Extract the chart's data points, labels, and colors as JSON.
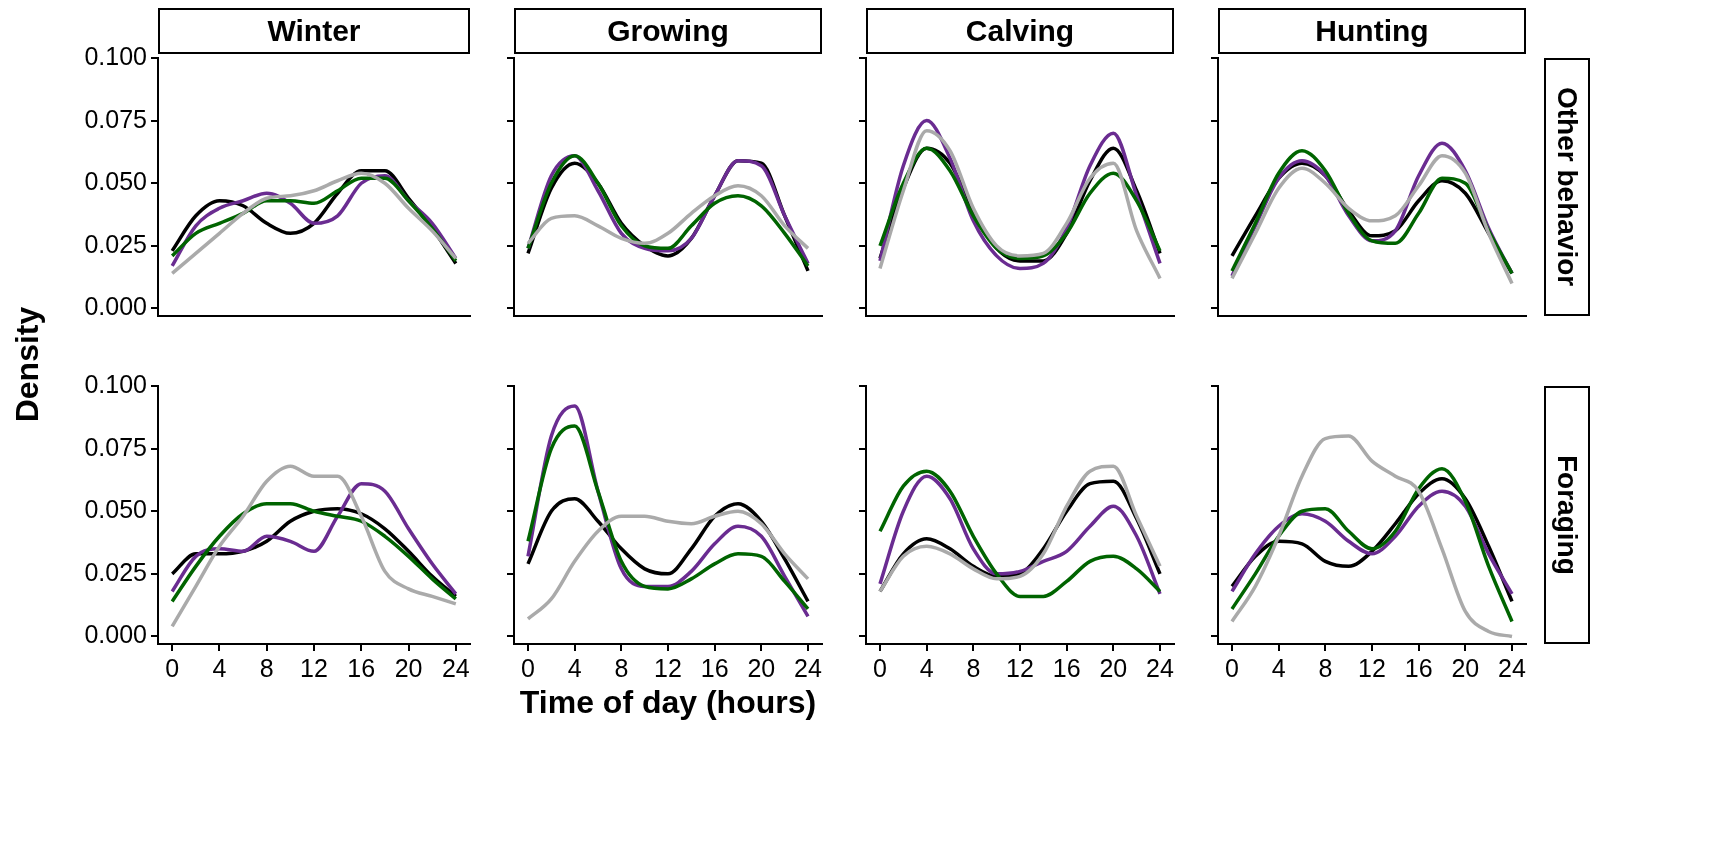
{
  "chart_data": [
    {
      "type": "line",
      "title": "Winter",
      "ylabel": "Density",
      "tick_labels": "y",
      "x": [
        0,
        2,
        4,
        6,
        8,
        10,
        12,
        14,
        16,
        18,
        20,
        22,
        24
      ],
      "xlim": [
        -1.2,
        25.2
      ],
      "xticks": [
        0,
        4,
        8,
        12,
        16,
        20,
        24
      ],
      "ylim": [
        -0.003,
        0.1
      ],
      "yticks": [
        {
          "value": 0,
          "label": "0.000"
        },
        {
          "value": 0.025,
          "label": "0.025"
        },
        {
          "value": 0.05,
          "label": "0.050"
        },
        {
          "value": 0.075,
          "label": "0.075"
        },
        {
          "value": 0.1,
          "label": "0.100"
        }
      ],
      "grid": false,
      "legend": false,
      "marker": "none",
      "line_style": "solid",
      "series": [
        {
          "color": "#aaaaaa",
          "values": [
            0.014,
            0.022,
            0.03,
            0.038,
            0.044,
            0.045,
            0.047,
            0.051,
            0.054,
            0.05,
            0.04,
            0.031,
            0.02
          ]
        },
        {
          "color": "#006400",
          "values": [
            0.021,
            0.03,
            0.034,
            0.038,
            0.043,
            0.043,
            0.042,
            0.047,
            0.052,
            0.052,
            0.043,
            0.032,
            0.019
          ]
        },
        {
          "color": "#6a2c91",
          "values": [
            0.017,
            0.033,
            0.04,
            0.043,
            0.046,
            0.042,
            0.034,
            0.037,
            0.05,
            0.053,
            0.043,
            0.034,
            0.02
          ]
        },
        {
          "color": "#000000",
          "values": [
            0.023,
            0.037,
            0.043,
            0.041,
            0.034,
            0.03,
            0.034,
            0.046,
            0.055,
            0.055,
            0.044,
            0.032,
            0.018
          ]
        }
      ]
    },
    {
      "type": "line",
      "title": "Growing",
      "tick_labels": false,
      "x": [
        0,
        2,
        4,
        6,
        8,
        10,
        12,
        14,
        16,
        18,
        20,
        22,
        24
      ],
      "xlim": [
        -1.2,
        25.2
      ],
      "xticks": [
        0,
        4,
        8,
        12,
        16,
        20,
        24
      ],
      "ylim": [
        -0.003,
        0.1
      ],
      "yticks": [
        0,
        0.025,
        0.05,
        0.075,
        0.1
      ],
      "grid": false,
      "legend": false,
      "marker": "none",
      "line_style": "solid",
      "series": [
        {
          "color": "#aaaaaa",
          "values": [
            0.026,
            0.036,
            0.037,
            0.033,
            0.028,
            0.026,
            0.03,
            0.038,
            0.045,
            0.049,
            0.045,
            0.033,
            0.024
          ]
        },
        {
          "color": "#006400",
          "values": [
            0.024,
            0.05,
            0.061,
            0.05,
            0.033,
            0.025,
            0.024,
            0.033,
            0.042,
            0.045,
            0.041,
            0.03,
            0.017
          ]
        },
        {
          "color": "#6a2c91",
          "values": [
            0.024,
            0.053,
            0.061,
            0.047,
            0.03,
            0.024,
            0.023,
            0.028,
            0.045,
            0.059,
            0.057,
            0.037,
            0.018
          ]
        },
        {
          "color": "#000000",
          "values": [
            0.022,
            0.048,
            0.058,
            0.05,
            0.034,
            0.025,
            0.021,
            0.028,
            0.045,
            0.059,
            0.058,
            0.037,
            0.015
          ]
        }
      ]
    },
    {
      "type": "line",
      "title": "Calving",
      "tick_labels": false,
      "x": [
        0,
        2,
        4,
        6,
        8,
        10,
        12,
        14,
        16,
        18,
        20,
        22,
        24
      ],
      "xlim": [
        -1.2,
        25.2
      ],
      "xticks": [
        0,
        4,
        8,
        12,
        16,
        20,
        24
      ],
      "ylim": [
        -0.003,
        0.1
      ],
      "yticks": [
        0,
        0.025,
        0.05,
        0.075,
        0.1
      ],
      "grid": false,
      "legend": false,
      "marker": "none",
      "line_style": "solid",
      "series": [
        {
          "color": "#aaaaaa",
          "values": [
            0.016,
            0.047,
            0.071,
            0.063,
            0.04,
            0.025,
            0.021,
            0.022,
            0.034,
            0.052,
            0.058,
            0.031,
            0.012
          ]
        },
        {
          "color": "#006400",
          "values": [
            0.025,
            0.05,
            0.064,
            0.055,
            0.037,
            0.024,
            0.02,
            0.021,
            0.03,
            0.046,
            0.054,
            0.043,
            0.023
          ]
        },
        {
          "color": "#6a2c91",
          "values": [
            0.019,
            0.057,
            0.075,
            0.06,
            0.035,
            0.021,
            0.016,
            0.018,
            0.032,
            0.057,
            0.07,
            0.045,
            0.018
          ]
        },
        {
          "color": "#000000",
          "values": [
            0.02,
            0.048,
            0.064,
            0.058,
            0.039,
            0.024,
            0.019,
            0.019,
            0.03,
            0.051,
            0.064,
            0.047,
            0.022
          ]
        }
      ]
    },
    {
      "type": "line",
      "title": "Hunting",
      "annotations": [
        "Other behavior"
      ],
      "tick_labels": false,
      "x": [
        0,
        2,
        4,
        6,
        8,
        10,
        12,
        14,
        16,
        18,
        20,
        22,
        24
      ],
      "xlim": [
        -1.2,
        25.2
      ],
      "xticks": [
        0,
        4,
        8,
        12,
        16,
        20,
        24
      ],
      "ylim": [
        -0.003,
        0.1
      ],
      "yticks": [
        0,
        0.025,
        0.05,
        0.075,
        0.1
      ],
      "grid": false,
      "legend": false,
      "marker": "none",
      "line_style": "solid",
      "series": [
        {
          "color": "#aaaaaa",
          "values": [
            0.012,
            0.03,
            0.048,
            0.056,
            0.05,
            0.04,
            0.035,
            0.037,
            0.049,
            0.061,
            0.054,
            0.03,
            0.01
          ]
        },
        {
          "color": "#006400",
          "values": [
            0.015,
            0.034,
            0.054,
            0.063,
            0.055,
            0.038,
            0.027,
            0.026,
            0.038,
            0.052,
            0.05,
            0.031,
            0.014
          ]
        },
        {
          "color": "#6a2c91",
          "values": [
            0.013,
            0.033,
            0.052,
            0.059,
            0.053,
            0.037,
            0.027,
            0.031,
            0.053,
            0.066,
            0.055,
            0.032,
            0.014
          ]
        },
        {
          "color": "#000000",
          "values": [
            0.021,
            0.037,
            0.052,
            0.058,
            0.053,
            0.039,
            0.029,
            0.031,
            0.043,
            0.051,
            0.046,
            0.03,
            0.014
          ]
        }
      ]
    },
    {
      "type": "line",
      "x": [
        0,
        2,
        4,
        6,
        8,
        10,
        12,
        14,
        16,
        18,
        20,
        22,
        24
      ],
      "xlim": [
        -1.2,
        25.2
      ],
      "xticks": [
        0,
        4,
        8,
        12,
        16,
        20,
        24
      ],
      "ylim": [
        -0.003,
        0.1
      ],
      "yticks": [
        {
          "value": 0,
          "label": "0.000"
        },
        {
          "value": 0.025,
          "label": "0.025"
        },
        {
          "value": 0.05,
          "label": "0.050"
        },
        {
          "value": 0.075,
          "label": "0.075"
        },
        {
          "value": 0.1,
          "label": "0.100"
        }
      ],
      "grid": false,
      "legend": false,
      "marker": "none",
      "line_style": "solid",
      "series": [
        {
          "color": "#aaaaaa",
          "values": [
            0.004,
            0.02,
            0.036,
            0.048,
            0.062,
            0.068,
            0.064,
            0.064,
            0.048,
            0.026,
            0.019,
            0.016,
            0.013
          ]
        },
        {
          "color": "#006400",
          "values": [
            0.014,
            0.028,
            0.04,
            0.049,
            0.053,
            0.053,
            0.05,
            0.048,
            0.046,
            0.04,
            0.032,
            0.023,
            0.015
          ]
        },
        {
          "color": "#6a2c91",
          "values": [
            0.018,
            0.032,
            0.035,
            0.034,
            0.04,
            0.038,
            0.034,
            0.048,
            0.061,
            0.058,
            0.043,
            0.029,
            0.017
          ]
        },
        {
          "color": "#000000",
          "values": [
            0.025,
            0.033,
            0.033,
            0.034,
            0.038,
            0.046,
            0.05,
            0.051,
            0.049,
            0.043,
            0.034,
            0.024,
            0.016
          ]
        }
      ]
    },
    {
      "type": "line",
      "xlabel": "Time of day (hours)",
      "tick_labels": "x",
      "x": [
        0,
        2,
        4,
        6,
        8,
        10,
        12,
        14,
        16,
        18,
        20,
        22,
        24
      ],
      "xlim": [
        -1.2,
        25.2
      ],
      "xticks": [
        0,
        4,
        8,
        12,
        16,
        20,
        24
      ],
      "ylim": [
        -0.003,
        0.1
      ],
      "yticks": [
        0,
        0.025,
        0.05,
        0.075,
        0.1
      ],
      "grid": false,
      "legend": false,
      "marker": "none",
      "line_style": "solid",
      "series": [
        {
          "color": "#aaaaaa",
          "values": [
            0.007,
            0.015,
            0.03,
            0.042,
            0.048,
            0.048,
            0.046,
            0.045,
            0.048,
            0.05,
            0.045,
            0.033,
            0.023
          ]
        },
        {
          "color": "#006400",
          "values": [
            0.038,
            0.075,
            0.084,
            0.058,
            0.03,
            0.02,
            0.019,
            0.023,
            0.029,
            0.033,
            0.032,
            0.022,
            0.011
          ]
        },
        {
          "color": "#6a2c91",
          "values": [
            0.032,
            0.08,
            0.092,
            0.058,
            0.027,
            0.02,
            0.02,
            0.026,
            0.037,
            0.044,
            0.04,
            0.024,
            0.008
          ]
        },
        {
          "color": "#000000",
          "values": [
            0.029,
            0.05,
            0.055,
            0.046,
            0.035,
            0.027,
            0.025,
            0.035,
            0.048,
            0.053,
            0.046,
            0.031,
            0.014
          ]
        }
      ]
    },
    {
      "type": "line",
      "tick_labels": "x",
      "x": [
        0,
        2,
        4,
        6,
        8,
        10,
        12,
        14,
        16,
        18,
        20,
        22,
        24
      ],
      "xlim": [
        -1.2,
        25.2
      ],
      "xticks": [
        0,
        4,
        8,
        12,
        16,
        20,
        24
      ],
      "ylim": [
        -0.003,
        0.1
      ],
      "yticks": [
        0,
        0.025,
        0.05,
        0.075,
        0.1
      ],
      "grid": false,
      "legend": false,
      "marker": "none",
      "line_style": "solid",
      "series": [
        {
          "color": "#aaaaaa",
          "values": [
            0.018,
            0.032,
            0.036,
            0.033,
            0.027,
            0.023,
            0.024,
            0.033,
            0.052,
            0.066,
            0.068,
            0.048,
            0.028
          ]
        },
        {
          "color": "#006400",
          "values": [
            0.042,
            0.06,
            0.066,
            0.058,
            0.04,
            0.025,
            0.016,
            0.016,
            0.022,
            0.03,
            0.032,
            0.027,
            0.018
          ]
        },
        {
          "color": "#6a2c91",
          "values": [
            0.021,
            0.05,
            0.064,
            0.055,
            0.035,
            0.025,
            0.026,
            0.03,
            0.034,
            0.044,
            0.052,
            0.04,
            0.017
          ]
        },
        {
          "color": "#000000",
          "values": [
            0.018,
            0.033,
            0.039,
            0.035,
            0.028,
            0.024,
            0.025,
            0.035,
            0.05,
            0.061,
            0.062,
            0.047,
            0.025
          ]
        }
      ]
    },
    {
      "type": "line",
      "annotations": [
        "Foraging"
      ],
      "tick_labels": "x",
      "x": [
        0,
        2,
        4,
        6,
        8,
        10,
        12,
        14,
        16,
        18,
        20,
        22,
        24
      ],
      "xlim": [
        -1.2,
        25.2
      ],
      "xticks": [
        0,
        4,
        8,
        12,
        16,
        20,
        24
      ],
      "ylim": [
        -0.003,
        0.1
      ],
      "yticks": [
        0,
        0.025,
        0.05,
        0.075,
        0.1
      ],
      "grid": false,
      "legend": false,
      "marker": "none",
      "line_style": "solid",
      "series": [
        {
          "color": "#aaaaaa",
          "values": [
            0.006,
            0.02,
            0.04,
            0.064,
            0.079,
            0.08,
            0.07,
            0.064,
            0.058,
            0.035,
            0.01,
            0.002,
            0.0
          ]
        },
        {
          "color": "#006400",
          "values": [
            0.011,
            0.025,
            0.04,
            0.05,
            0.051,
            0.042,
            0.035,
            0.042,
            0.059,
            0.067,
            0.054,
            0.028,
            0.006
          ]
        },
        {
          "color": "#6a2c91",
          "values": [
            0.018,
            0.033,
            0.044,
            0.049,
            0.046,
            0.038,
            0.033,
            0.04,
            0.052,
            0.058,
            0.052,
            0.033,
            0.017
          ]
        },
        {
          "color": "#000000",
          "values": [
            0.02,
            0.032,
            0.038,
            0.037,
            0.03,
            0.028,
            0.034,
            0.045,
            0.057,
            0.063,
            0.055,
            0.036,
            0.014
          ]
        }
      ]
    }
  ]
}
